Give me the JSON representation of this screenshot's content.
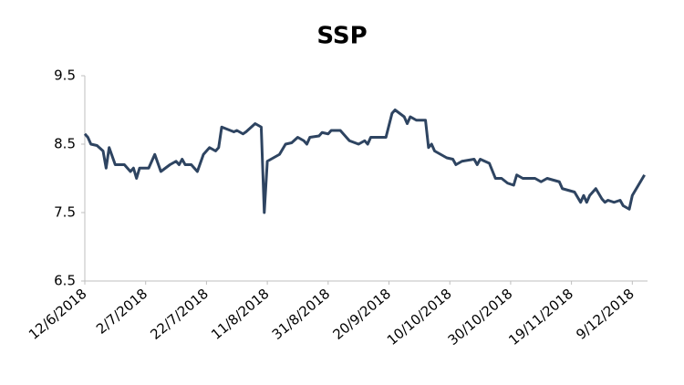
{
  "chart_data": {
    "type": "line",
    "title": "SSP",
    "x": [
      "2018-06-12",
      "2018-06-13",
      "2018-06-14",
      "2018-06-16",
      "2018-06-18",
      "2018-06-19",
      "2018-06-20",
      "2018-06-22",
      "2018-06-25",
      "2018-06-27",
      "2018-06-28",
      "2018-06-29",
      "2018-06-30",
      "2018-07-03",
      "2018-07-05",
      "2018-07-07",
      "2018-07-10",
      "2018-07-12",
      "2018-07-13",
      "2018-07-14",
      "2018-07-15",
      "2018-07-17",
      "2018-07-19",
      "2018-07-21",
      "2018-07-23",
      "2018-07-25",
      "2018-07-26",
      "2018-07-27",
      "2018-07-31",
      "2018-08-01",
      "2018-08-03",
      "2018-08-04",
      "2018-08-07",
      "2018-08-09",
      "2018-08-10",
      "2018-08-11",
      "2018-08-15",
      "2018-08-17",
      "2018-08-19",
      "2018-08-21",
      "2018-08-23",
      "2018-08-24",
      "2018-08-25",
      "2018-08-28",
      "2018-08-29",
      "2018-08-31",
      "2018-09-01",
      "2018-09-04",
      "2018-09-07",
      "2018-09-10",
      "2018-09-12",
      "2018-09-13",
      "2018-09-14",
      "2018-09-19",
      "2018-09-21",
      "2018-09-22",
      "2018-09-25",
      "2018-09-26",
      "2018-09-27",
      "2018-09-29",
      "2018-10-02",
      "2018-10-03",
      "2018-10-04",
      "2018-10-05",
      "2018-10-07",
      "2018-10-09",
      "2018-10-11",
      "2018-10-12",
      "2018-10-14",
      "2018-10-18",
      "2018-10-19",
      "2018-10-20",
      "2018-10-23",
      "2018-10-25",
      "2018-10-27",
      "2018-10-29",
      "2018-10-31",
      "2018-11-01",
      "2018-11-03",
      "2018-11-07",
      "2018-11-09",
      "2018-11-11",
      "2018-11-15",
      "2018-11-16",
      "2018-11-20",
      "2018-11-22",
      "2018-11-23",
      "2018-11-24",
      "2018-11-25",
      "2018-11-27",
      "2018-11-29",
      "2018-11-30",
      "2018-12-01",
      "2018-12-03",
      "2018-12-05",
      "2018-12-06",
      "2018-12-08",
      "2018-12-09",
      "2018-12-13"
    ],
    "series": [
      {
        "name": "SSP",
        "color": "#2e4461",
        "values": [
          8.65,
          8.6,
          8.5,
          8.48,
          8.4,
          8.15,
          8.45,
          8.2,
          8.2,
          8.1,
          8.15,
          8.0,
          8.15,
          8.15,
          8.35,
          8.1,
          8.2,
          8.25,
          8.2,
          8.28,
          8.2,
          8.2,
          8.1,
          8.35,
          8.45,
          8.4,
          8.45,
          8.75,
          8.68,
          8.7,
          8.65,
          8.68,
          8.8,
          8.75,
          7.5,
          8.25,
          8.35,
          8.5,
          8.52,
          8.6,
          8.55,
          8.5,
          8.6,
          8.62,
          8.67,
          8.65,
          8.7,
          8.7,
          8.55,
          8.5,
          8.55,
          8.5,
          8.6,
          8.6,
          8.95,
          9.0,
          8.9,
          8.8,
          8.9,
          8.85,
          8.85,
          8.45,
          8.5,
          8.4,
          8.35,
          8.3,
          8.28,
          8.2,
          8.25,
          8.28,
          8.2,
          8.28,
          8.22,
          8.0,
          8.0,
          7.93,
          7.9,
          8.05,
          8.0,
          8.0,
          7.95,
          8.0,
          7.95,
          7.85,
          7.8,
          7.65,
          7.75,
          7.65,
          7.75,
          7.85,
          7.7,
          7.65,
          7.68,
          7.65,
          7.68,
          7.6,
          7.55,
          7.75,
          8.05
        ]
      }
    ],
    "xlim": [
      "2018-06-12",
      "2018-12-14"
    ],
    "xticks": [
      {
        "value": "2018-06-12",
        "label": "12/6/2018"
      },
      {
        "value": "2018-07-02",
        "label": "2/7/2018"
      },
      {
        "value": "2018-07-22",
        "label": "22/7/2018"
      },
      {
        "value": "2018-08-11",
        "label": "11/8/2018"
      },
      {
        "value": "2018-08-31",
        "label": "31/8/2018"
      },
      {
        "value": "2018-09-20",
        "label": "20/9/2018"
      },
      {
        "value": "2018-10-10",
        "label": "10/10/2018"
      },
      {
        "value": "2018-10-30",
        "label": "30/10/2018"
      },
      {
        "value": "2018-11-19",
        "label": "19/11/2018"
      },
      {
        "value": "2018-12-09",
        "label": "9/12/2018"
      }
    ],
    "ylim": [
      6.5,
      9.5
    ],
    "yticks": [
      6.5,
      7.5,
      8.5,
      9.5
    ],
    "grid": false
  }
}
